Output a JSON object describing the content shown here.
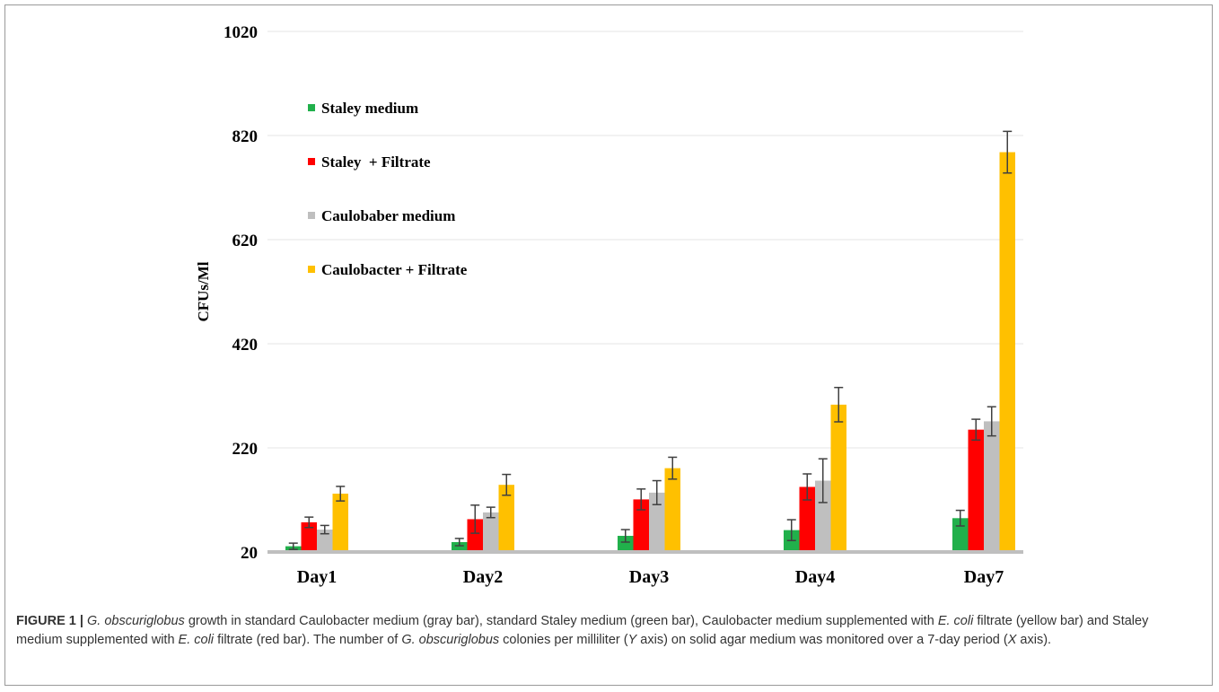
{
  "chart_data": {
    "type": "bar",
    "categories": [
      "Day1",
      "Day2",
      "Day3",
      "Day4",
      "Day7"
    ],
    "ylabel": "CFUs/Ml",
    "xlabel": "",
    "ylim": [
      20,
      1020
    ],
    "yticks": [
      20,
      220,
      420,
      620,
      820,
      1020
    ],
    "grid": true,
    "legend_position": "top-left",
    "series": [
      {
        "name": "Staley medium",
        "color": "#21b04b",
        "values": [
          31,
          39,
          51,
          62,
          85
        ],
        "errors": [
          6,
          7,
          12,
          20,
          15
        ]
      },
      {
        "name": "Staley  + Filtrate",
        "color": "#ff0000",
        "values": [
          77,
          83,
          121,
          145,
          255
        ],
        "errors": [
          10,
          27,
          20,
          25,
          20
        ]
      },
      {
        "name": "Caulobaber medium",
        "color": "#bfbfbf",
        "values": [
          63,
          96,
          134,
          157,
          271
        ],
        "errors": [
          8,
          10,
          23,
          42,
          28
        ]
      },
      {
        "name": "Caulobacter + Filtrate",
        "color": "#ffc000",
        "values": [
          132,
          149,
          181,
          303,
          788
        ],
        "errors": [
          14,
          20,
          21,
          33,
          40
        ]
      }
    ]
  },
  "caption": {
    "figure_label": "FIGURE 1 |",
    "segments": [
      {
        "text": "G. obscuriglobus",
        "italic": true
      },
      {
        "text": " growth in standard Caulobacter medium (gray bar), standard Staley medium (green bar), Caulobacter medium supplemented with ",
        "italic": false
      },
      {
        "text": "E. coli",
        "italic": true
      },
      {
        "text": " filtrate (yellow bar) and Staley medium supplemented with ",
        "italic": false
      },
      {
        "text": "E. coli",
        "italic": true
      },
      {
        "text": " filtrate (red bar). The number of ",
        "italic": false
      },
      {
        "text": "G. obscuriglobus",
        "italic": true
      },
      {
        "text": " colonies per milliliter (",
        "italic": false
      },
      {
        "text": "Y",
        "italic": true
      },
      {
        "text": " axis) on solid agar medium was monitored over a 7-day period (",
        "italic": false
      },
      {
        "text": "X",
        "italic": true
      },
      {
        "text": " axis).",
        "italic": false
      }
    ]
  }
}
